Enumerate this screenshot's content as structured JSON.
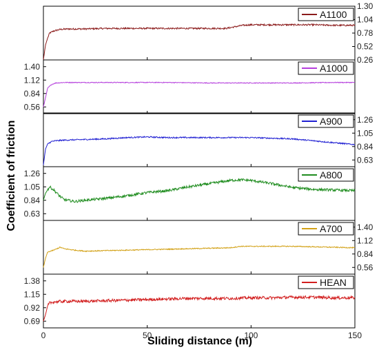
{
  "chart_data": {
    "type": "line",
    "xlabel": "Sliding distance (m)",
    "ylabel": "Coefficient of friction",
    "xlim": [
      0,
      150
    ],
    "x_ticks": [
      "0",
      "50",
      "100",
      "150"
    ],
    "grid": false,
    "legend_placement": "top-right of each panel",
    "panels": [
      {
        "series": {
          "name": "A1100",
          "color": "#8B1A1A",
          "x": [
            0,
            1,
            2,
            3,
            5,
            8,
            12,
            20,
            30,
            40,
            50,
            60,
            70,
            80,
            88,
            92,
            96,
            100,
            110,
            120,
            130,
            140,
            150
          ],
          "values": [
            0.26,
            0.55,
            0.68,
            0.78,
            0.82,
            0.85,
            0.86,
            0.86,
            0.87,
            0.87,
            0.87,
            0.87,
            0.87,
            0.87,
            0.87,
            0.9,
            0.93,
            0.94,
            0.94,
            0.94,
            0.94,
            0.93,
            0.93
          ],
          "noise": 0.015
        },
        "y_ticks": [
          0.26,
          0.52,
          0.78,
          1.04,
          1.3
        ],
        "ylim": [
          0.26,
          1.3
        ],
        "axis_side": "right"
      },
      {
        "series": {
          "name": "A1000",
          "color": "#B43CDC",
          "x": [
            0,
            1,
            2,
            4,
            6,
            10,
            20,
            40,
            60,
            80,
            100,
            120,
            140,
            150
          ],
          "values": [
            0.56,
            0.75,
            0.95,
            1.03,
            1.06,
            1.07,
            1.07,
            1.07,
            1.07,
            1.06,
            1.06,
            1.06,
            1.07,
            1.07
          ],
          "noise": 0.008
        },
        "y_ticks": [
          0.56,
          0.84,
          1.12,
          1.4
        ],
        "ylim": [
          0.42,
          1.54
        ],
        "axis_side": "left"
      },
      {
        "series": {
          "name": "A900",
          "color": "#1E1ED2",
          "x": [
            0,
            1,
            2,
            4,
            6,
            10,
            20,
            30,
            40,
            50,
            60,
            70,
            80,
            90,
            100,
            110,
            120,
            130,
            140,
            150
          ],
          "values": [
            0.55,
            0.8,
            0.88,
            0.92,
            0.93,
            0.94,
            0.95,
            0.96,
            0.98,
            0.99,
            0.98,
            0.98,
            0.98,
            0.98,
            0.98,
            0.97,
            0.96,
            0.93,
            0.9,
            0.87
          ],
          "noise": 0.01
        },
        "y_ticks": [
          0.63,
          0.84,
          1.05,
          1.26
        ],
        "ylim": [
          0.525,
          1.365
        ],
        "axis_side": "right"
      },
      {
        "series": {
          "name": "A800",
          "color": "#1E8C1E",
          "x": [
            0,
            1,
            3,
            5,
            8,
            10,
            15,
            20,
            30,
            40,
            50,
            60,
            70,
            80,
            90,
            95,
            100,
            110,
            120,
            130,
            140,
            150
          ],
          "values": [
            0.84,
            0.95,
            1.05,
            1.0,
            0.9,
            0.85,
            0.82,
            0.84,
            0.87,
            0.91,
            0.96,
            0.99,
            1.05,
            1.1,
            1.15,
            1.16,
            1.15,
            1.1,
            1.04,
            1.01,
            1.0,
            0.99
          ],
          "noise": 0.02
        },
        "y_ticks": [
          0.63,
          0.84,
          1.05,
          1.26
        ],
        "ylim": [
          0.525,
          1.365
        ],
        "axis_side": "left"
      },
      {
        "series": {
          "name": "A700",
          "color": "#D2A014",
          "x": [
            0,
            1,
            2,
            5,
            8,
            10,
            15,
            20,
            30,
            40,
            50,
            60,
            70,
            80,
            90,
            95,
            100,
            110,
            120,
            130,
            140,
            150
          ],
          "values": [
            0.56,
            0.75,
            0.88,
            0.92,
            0.98,
            0.95,
            0.92,
            0.9,
            0.91,
            0.92,
            0.93,
            0.94,
            0.95,
            0.96,
            0.97,
            1.0,
            1.0,
            1.0,
            1.0,
            0.99,
            0.98,
            0.97
          ],
          "noise": 0.01
        },
        "y_ticks": [
          0.56,
          0.84,
          1.12,
          1.4
        ],
        "ylim": [
          0.42,
          1.54
        ],
        "axis_side": "right"
      },
      {
        "series": {
          "name": "HEAN",
          "color": "#D21E1E",
          "x": [
            0,
            1,
            2,
            3,
            5,
            10,
            20,
            30,
            40,
            50,
            60,
            70,
            80,
            90,
            100,
            110,
            120,
            130,
            140,
            150
          ],
          "values": [
            0.69,
            0.8,
            0.95,
            1.0,
            1.02,
            1.03,
            1.03,
            1.04,
            1.05,
            1.06,
            1.07,
            1.08,
            1.08,
            1.08,
            1.09,
            1.09,
            1.1,
            1.1,
            1.09,
            1.09
          ],
          "noise": 0.025
        },
        "y_ticks": [
          0.69,
          0.92,
          1.15,
          1.38
        ],
        "ylim": [
          0.575,
          1.495
        ],
        "axis_side": "left"
      }
    ]
  }
}
